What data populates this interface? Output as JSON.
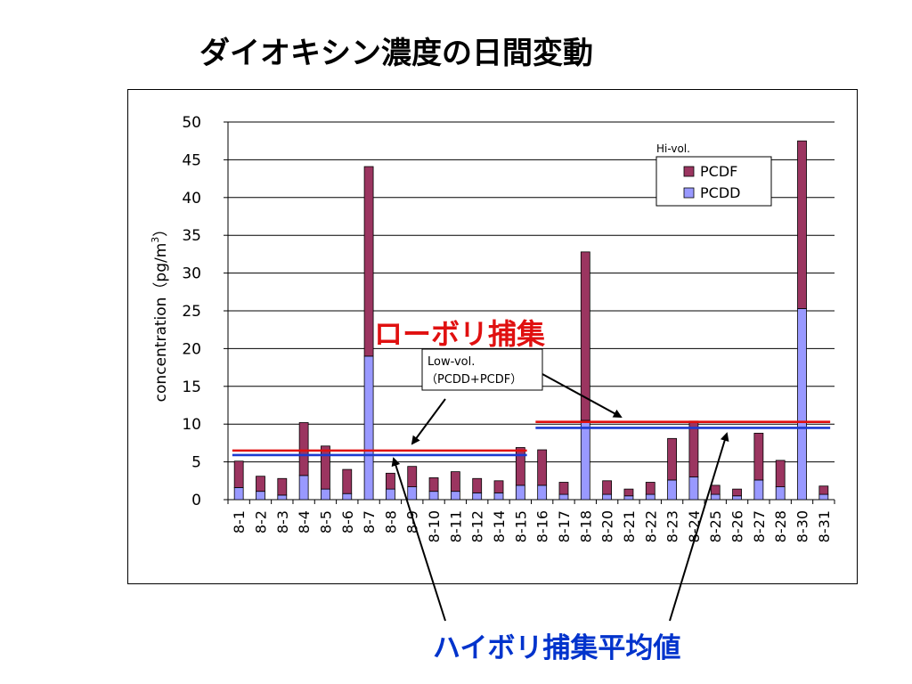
{
  "title": "ダイオキシン濃度の日間変動",
  "colors": {
    "pcdf": "#9b3560",
    "pcdd": "#9999ff",
    "low_vol_line": "#e01010",
    "hi_vol_line": "#1d3bd0",
    "annotation_red": "#e01010",
    "annotation_blue": "#0033cc"
  },
  "chart_data": {
    "type": "bar",
    "stacked": true,
    "categories": [
      "8-1",
      "8-2",
      "8-3",
      "8-4",
      "8-5",
      "8-6",
      "8-7",
      "8-8",
      "8-9",
      "8-10",
      "8-11",
      "8-12",
      "8-14",
      "8-15",
      "8-16",
      "8-17",
      "8-18",
      "8-20",
      "8-21",
      "8-22",
      "8-23",
      "8-24",
      "8-25",
      "8-26",
      "8-27",
      "8-28",
      "8-30",
      "8-31"
    ],
    "series": [
      {
        "name": "PCDD",
        "values": [
          1.6,
          1.1,
          0.6,
          3.2,
          1.4,
          0.8,
          19.0,
          1.4,
          1.7,
          1.1,
          1.1,
          0.9,
          0.9,
          1.9,
          1.9,
          0.7,
          10.5,
          0.7,
          0.5,
          0.7,
          2.6,
          3.0,
          0.7,
          0.5,
          2.6,
          1.7,
          25.3,
          0.7
        ]
      },
      {
        "name": "PCDF",
        "values": [
          3.5,
          2.0,
          2.2,
          7.0,
          5.7,
          3.2,
          25.1,
          2.1,
          2.7,
          1.8,
          2.6,
          1.9,
          1.6,
          5.0,
          4.7,
          1.6,
          22.3,
          1.8,
          0.9,
          1.6,
          5.5,
          7.4,
          1.2,
          0.9,
          6.2,
          3.5,
          22.2,
          1.1
        ]
      }
    ],
    "ylabel": "concentration（pg/m",
    "ylabel_sup": "3",
    "ylabel_close": "）",
    "ylim": [
      0,
      50
    ],
    "yticks": [
      0,
      5,
      10,
      15,
      20,
      25,
      30,
      35,
      40,
      45,
      50
    ],
    "grid": true,
    "legend": {
      "title": "Hi-vol.",
      "position": "top-right",
      "entries": [
        "PCDF",
        "PCDD"
      ]
    },
    "reference_lines": [
      {
        "name": "low-vol-1",
        "kind": "low",
        "y": 6.5,
        "x_start": "8-1",
        "x_end": "8-15"
      },
      {
        "name": "hi-vol-1",
        "kind": "hi",
        "y": 5.9,
        "x_start": "8-1",
        "x_end": "8-15"
      },
      {
        "name": "low-vol-2",
        "kind": "low",
        "y": 10.3,
        "x_start": "8-16",
        "x_end": "8-31"
      },
      {
        "name": "hi-vol-2",
        "kind": "hi",
        "y": 9.5,
        "x_start": "8-16",
        "x_end": "8-31"
      }
    ],
    "annotations": {
      "low_vol_heading": "ローボリ捕集",
      "low_vol_box_line1": "Low-vol.",
      "low_vol_box_line2": "（PCDD+PCDF）",
      "hi_vol_heading": "ハイボリ捕集平均値"
    }
  }
}
